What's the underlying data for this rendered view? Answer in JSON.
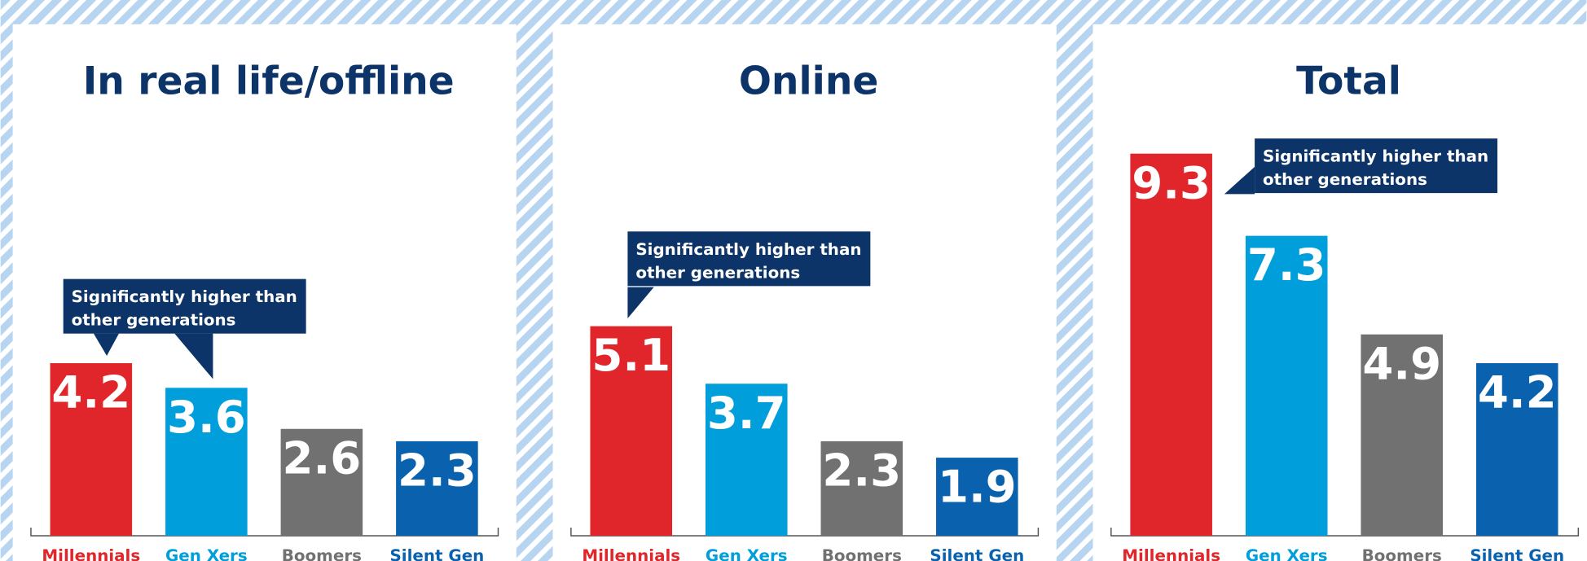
{
  "chart_data": [
    {
      "type": "bar",
      "title": "In real life/offline",
      "categories": [
        "Millennials",
        "Gen Xers",
        "Boomers",
        "Silent Gen"
      ],
      "values": [
        4.2,
        3.6,
        2.6,
        2.3
      ],
      "colors": [
        "#e0262a",
        "#009fdb",
        "#717171",
        "#0a62ae"
      ],
      "ylim": [
        0,
        10
      ],
      "annotation": "Significantly higher than other generations"
    },
    {
      "type": "bar",
      "title": "Online",
      "categories": [
        "Millennials",
        "Gen Xers",
        "Boomers",
        "Silent Gen"
      ],
      "values": [
        5.1,
        3.7,
        2.3,
        1.9
      ],
      "colors": [
        "#e0262a",
        "#009fdb",
        "#717171",
        "#0a62ae"
      ],
      "ylim": [
        0,
        10
      ],
      "annotation": "Significantly higher than other generations"
    },
    {
      "type": "bar",
      "title": "Total",
      "categories": [
        "Millennials",
        "Gen Xers",
        "Boomers",
        "Silent Gen"
      ],
      "values": [
        9.3,
        7.3,
        4.9,
        4.2
      ],
      "colors": [
        "#e0262a",
        "#009fdb",
        "#717171",
        "#0a62ae"
      ],
      "ylim": [
        0,
        10
      ],
      "annotation": "Significantly higher than other generations"
    }
  ]
}
